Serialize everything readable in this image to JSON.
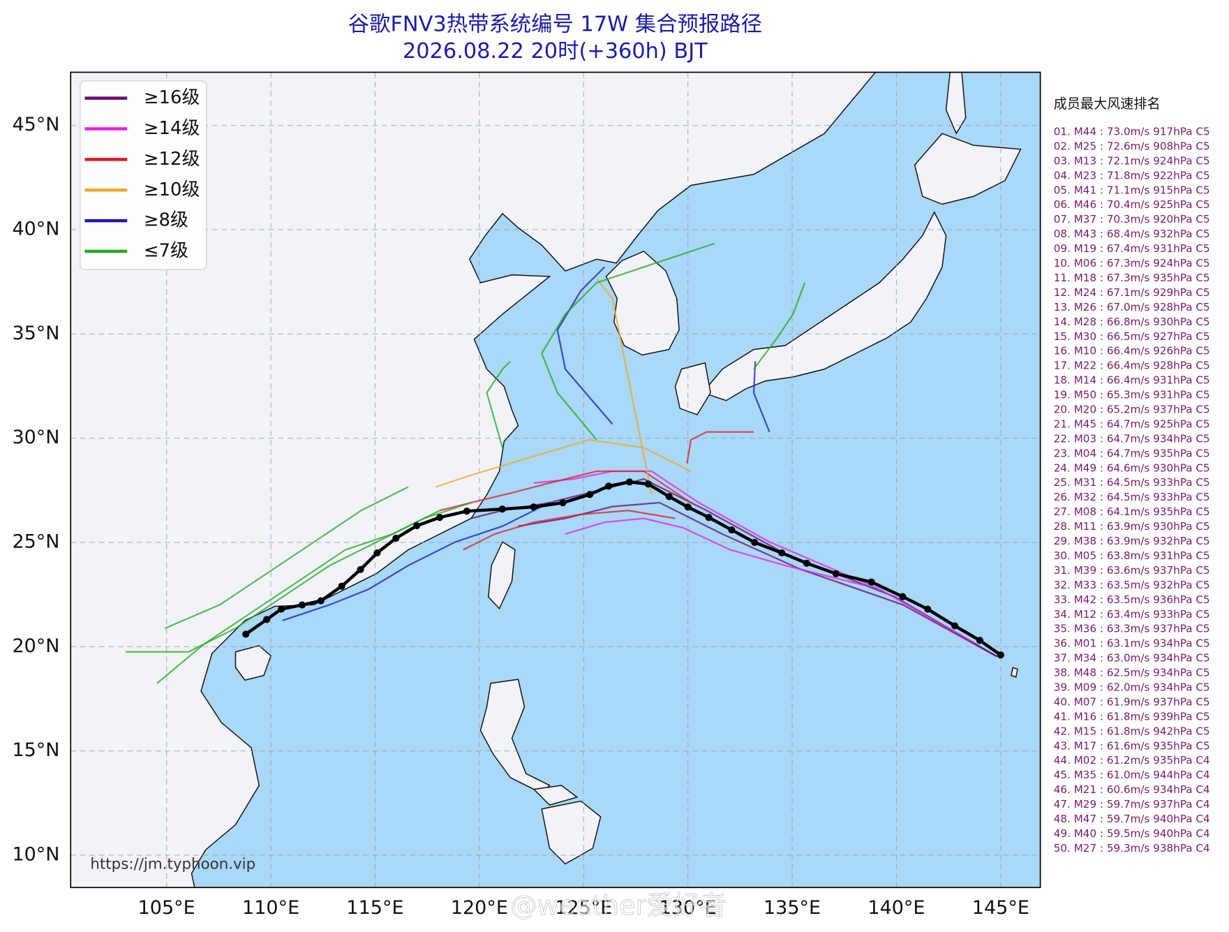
{
  "title": [
    "谷歌FNV3热带系统编号 17W 集合预报路径",
    "2026.08.22 20时(+360h) BJT"
  ],
  "map": {
    "xlim": [
      100.4,
      146.9
    ],
    "ylim": [
      8.45,
      47.55
    ],
    "xticks": [
      {
        "value": 105,
        "label": "105°E"
      },
      {
        "value": 110,
        "label": "110°E"
      },
      {
        "value": 115,
        "label": "115°E"
      },
      {
        "value": 120,
        "label": "120°E"
      },
      {
        "value": 125,
        "label": "125°E"
      },
      {
        "value": 130,
        "label": "130°E"
      },
      {
        "value": 135,
        "label": "135°E"
      },
      {
        "value": 140,
        "label": "140°E"
      },
      {
        "value": 145,
        "label": "145°E"
      }
    ],
    "yticks": [
      {
        "value": 10,
        "label": "10°N"
      },
      {
        "value": 15,
        "label": "15°N"
      },
      {
        "value": 20,
        "label": "20°N"
      },
      {
        "value": 25,
        "label": "25°N"
      },
      {
        "value": 30,
        "label": "30°N"
      },
      {
        "value": 35,
        "label": "35°N"
      },
      {
        "value": 40,
        "label": "40°N"
      },
      {
        "value": 45,
        "label": "45°N"
      }
    ],
    "grid": true,
    "legend": [
      {
        "label": "≥16级",
        "color": "#6a0a6a"
      },
      {
        "label": "≥14级",
        "color": "#e81ce8"
      },
      {
        "label": "≥12级",
        "color": "#e01b24"
      },
      {
        "label": "≥10级",
        "color": "#f0a830"
      },
      {
        "label": "≥8级",
        "color": "#1a1ab8"
      },
      {
        "label": "≤7级",
        "color": "#22aa22"
      }
    ],
    "mean_track": {
      "color": "#000000",
      "lon": [
        145.0,
        144.0,
        142.8,
        141.5,
        140.3,
        138.8,
        137.1,
        135.7,
        134.5,
        133.2,
        132.1,
        131.0,
        130.0,
        129.1,
        128.1,
        127.2,
        126.2,
        125.3,
        124.0,
        122.6,
        121.1,
        119.4,
        118.1,
        117.0,
        116.0,
        115.1,
        114.3,
        113.4,
        112.4,
        111.5,
        110.5,
        109.8,
        108.8
      ],
      "lat": [
        19.6,
        20.3,
        21.0,
        21.8,
        22.4,
        23.1,
        23.5,
        24.0,
        24.5,
        25.0,
        25.6,
        26.2,
        26.7,
        27.2,
        27.8,
        27.9,
        27.7,
        27.3,
        26.9,
        26.7,
        26.6,
        26.5,
        26.2,
        25.8,
        25.2,
        24.5,
        23.7,
        22.9,
        22.2,
        22.0,
        21.8,
        21.3,
        20.6
      ]
    }
  },
  "ranking": {
    "title": "成员最大风速排名",
    "items": [
      "01. M44 : 73.0m/s 917hPa C5",
      "02. M25 : 72.6m/s 908hPa C5",
      "03. M13 : 72.1m/s 924hPa C5",
      "04. M23 : 71.8m/s 922hPa C5",
      "05. M41 : 71.1m/s 915hPa C5",
      "06. M46 : 70.4m/s 925hPa C5",
      "07. M37 : 70.3m/s 920hPa C5",
      "08. M43 : 68.4m/s 932hPa C5",
      "09. M19 : 67.4m/s 931hPa C5",
      "10. M06 : 67.3m/s 924hPa C5",
      "11. M18 : 67.3m/s 935hPa C5",
      "12. M24 : 67.1m/s 929hPa C5",
      "13. M26 : 67.0m/s 928hPa C5",
      "14. M28 : 66.8m/s 930hPa C5",
      "15. M30 : 66.5m/s 927hPa C5",
      "16. M10 : 66.4m/s 926hPa C5",
      "17. M22 : 66.4m/s 928hPa C5",
      "18. M14 : 66.4m/s 931hPa C5",
      "19. M50 : 65.3m/s 931hPa C5",
      "20. M20 : 65.2m/s 937hPa C5",
      "21. M45 : 64.7m/s 925hPa C5",
      "22. M03 : 64.7m/s 934hPa C5",
      "23. M04 : 64.7m/s 935hPa C5",
      "24. M49 : 64.6m/s 930hPa C5",
      "25. M31 : 64.5m/s 933hPa C5",
      "26. M32 : 64.5m/s 933hPa C5",
      "27. M08 : 64.1m/s 935hPa C5",
      "28. M11 : 63.9m/s 930hPa C5",
      "29. M38 : 63.9m/s 932hPa C5",
      "30. M05 : 63.8m/s 931hPa C5",
      "31. M39 : 63.6m/s 937hPa C5",
      "32. M33 : 63.5m/s 932hPa C5",
      "33. M42 : 63.5m/s 936hPa C5",
      "34. M12 : 63.4m/s 933hPa C5",
      "35. M36 : 63.3m/s 937hPa C5",
      "36. M01 : 63.1m/s 934hPa C5",
      "37. M34 : 63.0m/s 934hPa C5",
      "38. M48 : 62.5m/s 934hPa C5",
      "39. M09 : 62.0m/s 934hPa C5",
      "40. M07 : 61.9m/s 937hPa C5",
      "41. M16 : 61.8m/s 939hPa C5",
      "42. M15 : 61.8m/s 942hPa C5",
      "43. M17 : 61.6m/s 935hPa C5",
      "44. M02 : 61.2m/s 935hPa C4",
      "45. M35 : 61.0m/s 944hPa C4",
      "46. M21 : 60.6m/s 934hPa C4",
      "47. M29 : 59.7m/s 937hPa C4",
      "48. M47 : 59.7m/s 940hPa C4",
      "49. M40 : 59.5m/s 940hPa C4",
      "50. M27 : 59.3m/s 938hPa C4"
    ]
  },
  "watermark_url": "https://jm.typhoon.vip",
  "watermark_user": "@weather爱好者"
}
